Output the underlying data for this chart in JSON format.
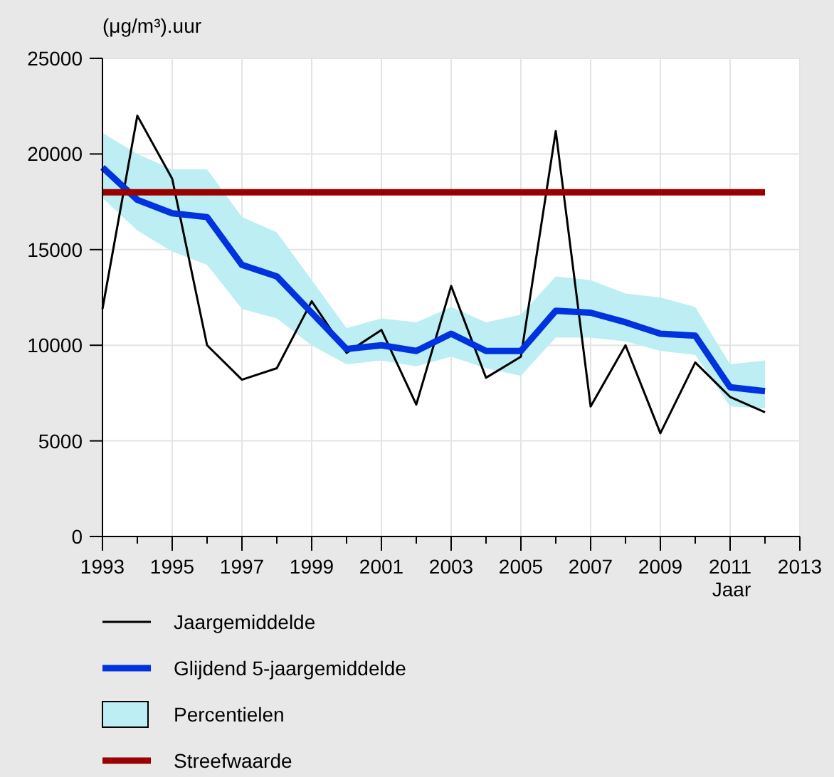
{
  "chart_data": {
    "type": "line",
    "ylabel": "(μg/m³).uur",
    "xlabel": "Jaar",
    "x": [
      1993,
      1994,
      1995,
      1996,
      1997,
      1998,
      1999,
      2000,
      2001,
      2002,
      2003,
      2004,
      2005,
      2006,
      2007,
      2008,
      2009,
      2010,
      2011,
      2012
    ],
    "series": [
      {
        "name": "Jaargemiddelde",
        "color": "#000000",
        "values": [
          11900,
          22000,
          18700,
          10000,
          8200,
          8800,
          12300,
          9600,
          10800,
          6900,
          13100,
          8300,
          9400,
          21200,
          6800,
          10000,
          5400,
          9100,
          7300,
          6500
        ]
      },
      {
        "name": "Glijdend 5-jaargemiddelde",
        "color": "#0033dd",
        "values": [
          19300,
          17600,
          16900,
          16700,
          14200,
          13600,
          11700,
          9800,
          10000,
          9700,
          10600,
          9700,
          9700,
          11800,
          11700,
          11200,
          10600,
          10500,
          7800,
          7600
        ]
      },
      {
        "name": "Percentielen",
        "type": "area",
        "color": "#bdeef3",
        "values": [
          null,
          null,
          null,
          null,
          null,
          null,
          null,
          null,
          null,
          null,
          null,
          null,
          null,
          null,
          null,
          null,
          null,
          null,
          null,
          null
        ],
        "lower": [
          17700,
          16000,
          14900,
          14200,
          11900,
          11400,
          10000,
          9000,
          9200,
          8900,
          9400,
          8800,
          8400,
          10400,
          10400,
          10200,
          9700,
          9500,
          6800,
          6700
        ],
        "upper": [
          21100,
          20000,
          19200,
          19200,
          16700,
          15900,
          13400,
          10900,
          11400,
          11200,
          12000,
          11200,
          11600,
          13600,
          13400,
          12700,
          12500,
          12000,
          9000,
          9200
        ]
      },
      {
        "name": "Streefwaarde",
        "color": "#990000",
        "x": [
          1993,
          2012
        ],
        "values": [
          18000,
          18000
        ]
      }
    ],
    "xlim": [
      1993,
      2013
    ],
    "xticks": [
      1993,
      {
        "value": 1994,
        "label": null
      },
      1995,
      {
        "value": 1996,
        "label": null
      },
      1997,
      {
        "value": 1998,
        "label": null
      },
      1999,
      {
        "value": 2000,
        "label": null
      },
      2001,
      {
        "value": 2002,
        "label": null
      },
      2003,
      {
        "value": 2004,
        "label": null
      },
      2005,
      {
        "value": 2006,
        "label": null
      },
      2007,
      {
        "value": 2008,
        "label": null
      },
      2009,
      {
        "value": 2010,
        "label": null
      },
      2011,
      {
        "value": 2012,
        "label": null
      },
      2013
    ],
    "ylim": [
      0,
      25000
    ],
    "yticks": [
      0,
      5000,
      10000,
      15000,
      20000,
      25000
    ],
    "grid": true,
    "legend": "bottom"
  }
}
